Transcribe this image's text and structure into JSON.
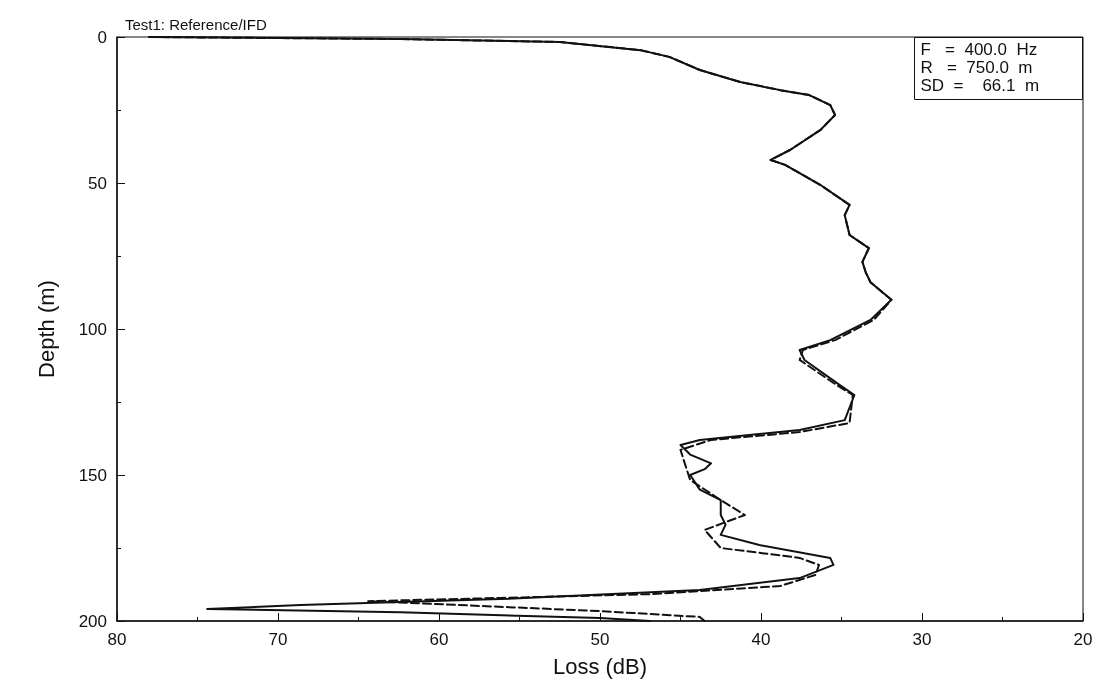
{
  "chart_data": {
    "type": "line",
    "title": "Test1: Reference/IFD",
    "xlabel": "Loss (dB)",
    "ylabel": "Depth (m)",
    "annotations": [
      "F   =  400.0  Hz",
      "R   =  750.0  m",
      "SD  =    66.1  m"
    ],
    "xlim": [
      80,
      20
    ],
    "xticks": [
      80,
      70,
      60,
      50,
      40,
      30,
      20
    ],
    "ylim": [
      200,
      0
    ],
    "yticks": [
      0,
      50,
      100,
      150,
      200
    ],
    "grid": false,
    "marker": "none",
    "series": [
      {
        "color": "#111111",
        "line_style": "solid",
        "x": [
          78,
          62.4,
          52.5,
          47.5,
          45.7,
          43.8,
          41.3,
          38.8,
          37.0,
          35.7,
          35.4,
          36.3,
          38.2,
          39.4,
          38.5,
          36.3,
          34.5,
          34.8,
          34.5,
          33.3,
          33.7,
          33.5,
          33.2,
          31.9,
          33.2,
          35.7,
          37.6,
          37.3,
          35.1,
          34.2,
          34.8,
          37.6,
          43.8,
          45.0,
          44.4,
          43.1,
          43.5,
          44.4,
          43.8,
          42.5,
          42.5,
          42.2,
          42.5,
          40.1,
          35.7,
          35.5,
          37.6,
          43.8,
          56.2,
          68.6,
          74.4,
          62.4,
          50,
          46.9
        ],
        "values": [
          0,
          0.7,
          1.7,
          4.5,
          6.8,
          11.3,
          15.4,
          18.2,
          19.9,
          23.3,
          26.7,
          31.8,
          38.7,
          42.1,
          43.8,
          50.7,
          57.5,
          61,
          67.8,
          72.3,
          77,
          80.5,
          84,
          90,
          96.9,
          103.8,
          107.2,
          110.6,
          119.2,
          122.6,
          131.2,
          134.6,
          138,
          139.7,
          143,
          146,
          148,
          150,
          155,
          158.6,
          163.7,
          167,
          170.5,
          174,
          178.4,
          180.8,
          185.3,
          189.4,
          192.5,
          194.5,
          195.9,
          197,
          199,
          200
        ]
      },
      {
        "color": "#111111",
        "line_style": "dashed",
        "x": [
          78,
          62.4,
          52.5,
          47.5,
          45.7,
          43.8,
          41.3,
          38.8,
          37.0,
          35.7,
          35.4,
          36.3,
          38.2,
          39.4,
          38.5,
          36.3,
          34.5,
          34.8,
          34.5,
          33.3,
          33.7,
          33.5,
          33.2,
          31.9,
          33.0,
          35.4,
          37.4,
          37.6,
          35.3,
          34.3,
          34.5,
          37.6,
          43.1,
          45.0,
          44.7,
          44.4,
          42.5,
          41.0,
          43.5,
          42.5,
          37.6,
          36.4,
          36.6,
          38.8,
          46.9,
          56.2,
          64.4,
          50,
          43.8,
          43.5
        ],
        "values": [
          0,
          0.7,
          1.7,
          4.5,
          6.8,
          11.3,
          15.4,
          18.2,
          19.9,
          23.3,
          26.7,
          31.8,
          38.7,
          42.1,
          43.8,
          50.7,
          57.5,
          61,
          67.8,
          72.3,
          77,
          80.5,
          84,
          90,
          96.9,
          103.8,
          107.2,
          110.6,
          119.2,
          122.6,
          132.2,
          135.3,
          138,
          141.4,
          146.6,
          151.7,
          158.6,
          163.7,
          168.8,
          175,
          178.4,
          180.8,
          184.2,
          188,
          190.8,
          192.1,
          193.2,
          196.6,
          198.6,
          200
        ]
      }
    ]
  }
}
